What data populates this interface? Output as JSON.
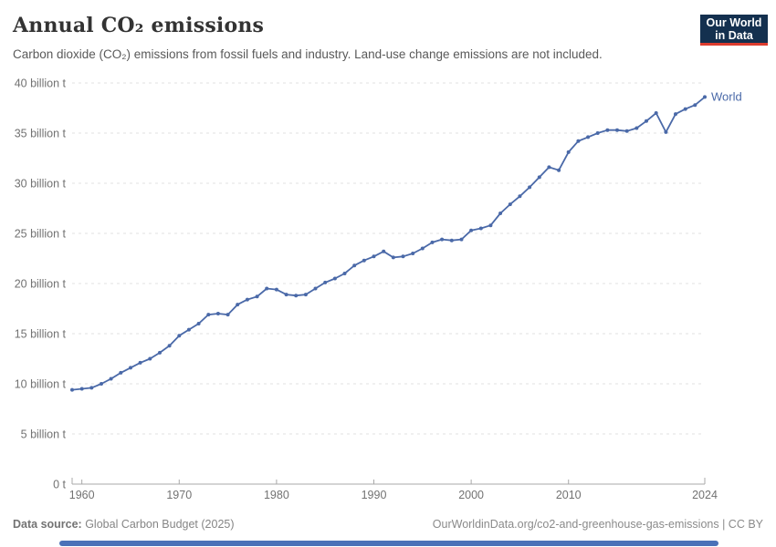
{
  "header": {
    "title": "Annual CO₂ emissions",
    "subtitle": "Carbon dioxide (CO₂) emissions from fossil fuels and industry. Land-use change emissions are not included.",
    "logo": {
      "line1": "Our World",
      "line2": "in Data"
    }
  },
  "chart_data": {
    "type": "line",
    "title": "Annual CO₂ emissions",
    "xlabel": "",
    "ylabel": "",
    "ylim": [
      0,
      40
    ],
    "xlim": [
      1959,
      2024
    ],
    "grid": "horizontal-dashed",
    "legend_position": "end-of-line-label",
    "y_ticks": [
      {
        "value": 0,
        "label": "0 t"
      },
      {
        "value": 5,
        "label": "5 billion t"
      },
      {
        "value": 10,
        "label": "10 billion t"
      },
      {
        "value": 15,
        "label": "15 billion t"
      },
      {
        "value": 20,
        "label": "20 billion t"
      },
      {
        "value": 25,
        "label": "25 billion t"
      },
      {
        "value": 30,
        "label": "30 billion t"
      },
      {
        "value": 35,
        "label": "35 billion t"
      },
      {
        "value": 40,
        "label": "40 billion t"
      }
    ],
    "x_ticks": [
      1960,
      1970,
      1980,
      1990,
      2000,
      2010,
      2024
    ],
    "series": [
      {
        "name": "World",
        "unit": "billion t CO₂",
        "x": [
          1959,
          1960,
          1961,
          1962,
          1963,
          1964,
          1965,
          1966,
          1967,
          1968,
          1969,
          1970,
          1971,
          1972,
          1973,
          1974,
          1975,
          1976,
          1977,
          1978,
          1979,
          1980,
          1981,
          1982,
          1983,
          1984,
          1985,
          1986,
          1987,
          1988,
          1989,
          1990,
          1991,
          1992,
          1993,
          1994,
          1995,
          1996,
          1997,
          1998,
          1999,
          2000,
          2001,
          2002,
          2003,
          2004,
          2005,
          2006,
          2007,
          2008,
          2009,
          2010,
          2011,
          2012,
          2013,
          2014,
          2015,
          2016,
          2017,
          2018,
          2019,
          2020,
          2021,
          2022,
          2023,
          2024
        ],
        "values": [
          9.4,
          9.5,
          9.6,
          10.0,
          10.5,
          11.1,
          11.6,
          12.1,
          12.5,
          13.1,
          13.8,
          14.8,
          15.4,
          16.0,
          16.9,
          17.0,
          16.9,
          17.9,
          18.4,
          18.7,
          19.5,
          19.4,
          18.9,
          18.8,
          18.9,
          19.5,
          20.1,
          20.5,
          21.0,
          21.8,
          22.3,
          22.7,
          23.2,
          22.6,
          22.7,
          23.0,
          23.5,
          24.1,
          24.4,
          24.3,
          24.4,
          25.3,
          25.5,
          25.8,
          27.0,
          27.9,
          28.7,
          29.6,
          30.6,
          31.6,
          31.3,
          33.1,
          34.2,
          34.6,
          35.0,
          35.3,
          35.3,
          35.2,
          35.5,
          36.2,
          37.0,
          35.1,
          36.9,
          37.4,
          37.8,
          38.6
        ]
      }
    ]
  },
  "footer": {
    "source_label": "Data source:",
    "source_value": " Global Carbon Budget (2025)",
    "credit": "OurWorldinData.org/co2-and-greenhouse-gas-emissions | CC BY"
  },
  "colors": {
    "line": "#4a69a8",
    "series_label": "#4a69a8",
    "grid": "#e1e1e1",
    "axis": "#a8a8a8",
    "tick_text": "#727272",
    "logo_bg": "#14304f",
    "logo_accent": "#dc3c2e",
    "timeline": "#4a71b8"
  }
}
